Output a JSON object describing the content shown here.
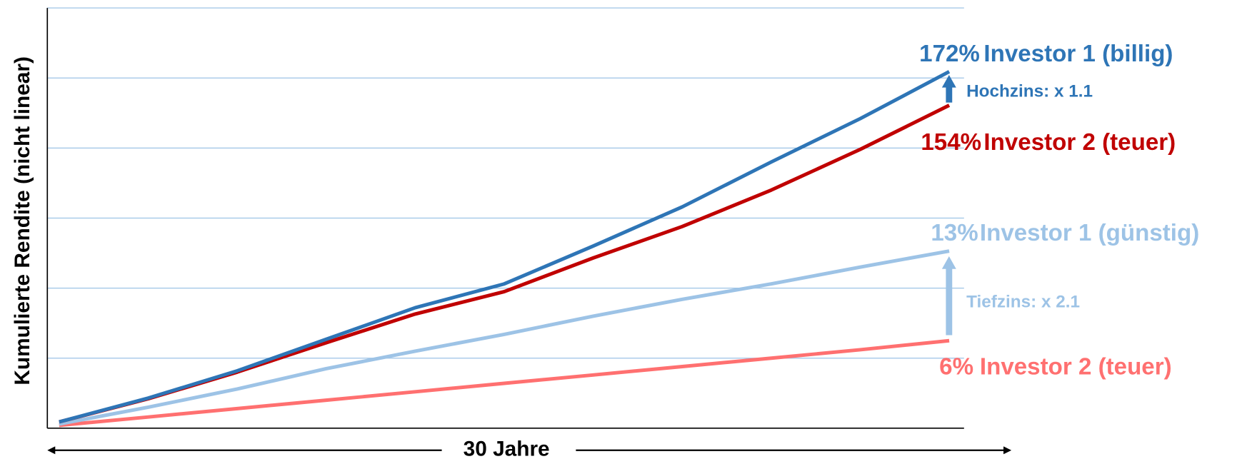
{
  "chart_data": {
    "type": "line",
    "y_label": "Kumulierte Rendite (nicht linear)",
    "x_label": "30 Jahre",
    "x": [
      0,
      3,
      6,
      9,
      12,
      15,
      18,
      21,
      24,
      27,
      30
    ],
    "xlim": [
      -0.4,
      30.5
    ],
    "ylim": [
      0,
      6
    ],
    "yticks": [
      1,
      2,
      3,
      4,
      5,
      6
    ],
    "grid": true,
    "series": [
      {
        "name": "Investor 1 (billig)",
        "end_label": "172%",
        "color": "#2e75b6",
        "values": [
          0.09,
          0.43,
          0.82,
          1.27,
          1.72,
          2.06,
          2.6,
          3.16,
          3.8,
          4.42,
          5.09
        ]
      },
      {
        "name": "Investor 2 (teuer)",
        "end_label": "154%",
        "color": "#c00000",
        "values": [
          0.09,
          0.42,
          0.8,
          1.22,
          1.63,
          1.95,
          2.43,
          2.88,
          3.4,
          3.98,
          4.61
        ]
      },
      {
        "name": "Investor 1 (günstig)",
        "end_label": "13%",
        "color": "#9dc3e6",
        "values": [
          0.06,
          0.3,
          0.56,
          0.85,
          1.1,
          1.34,
          1.6,
          1.84,
          2.06,
          2.3,
          2.53
        ]
      },
      {
        "name": "Investor 2 (teuer)",
        "end_label": "6%",
        "color": "#ff7070",
        "values": [
          0.04,
          0.16,
          0.28,
          0.4,
          0.52,
          0.64,
          0.76,
          0.88,
          1.0,
          1.12,
          1.25
        ]
      }
    ],
    "annotations": [
      "Hochzins: x 1.1",
      "Tiefzins: x 2.1"
    ]
  }
}
